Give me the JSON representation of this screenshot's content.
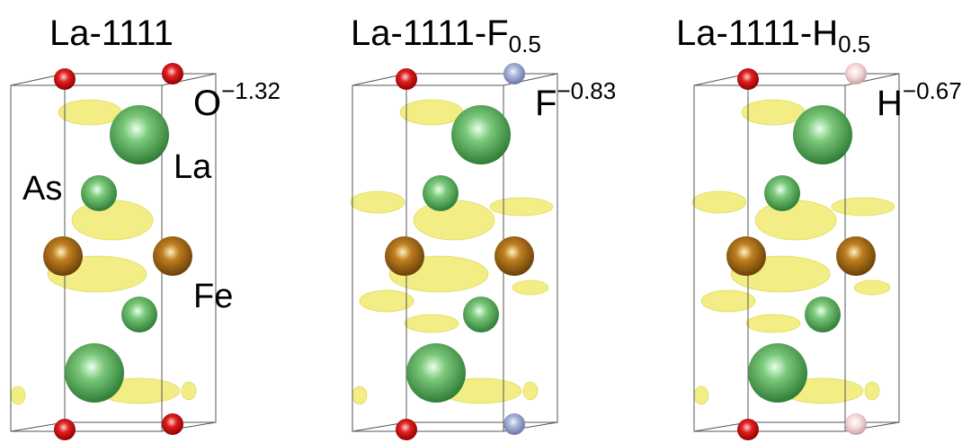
{
  "panels": [
    {
      "title": "La-1111",
      "species": "O",
      "charge": "−1.32",
      "atom_labels": [
        "La",
        "As",
        "Fe"
      ]
    },
    {
      "title": "La-1111-F",
      "title_sub": "0.5",
      "species": "F",
      "charge": "−0.83"
    },
    {
      "title": "La-1111-H",
      "title_sub": "0.5",
      "species": "H",
      "charge": "−0.67"
    }
  ]
}
